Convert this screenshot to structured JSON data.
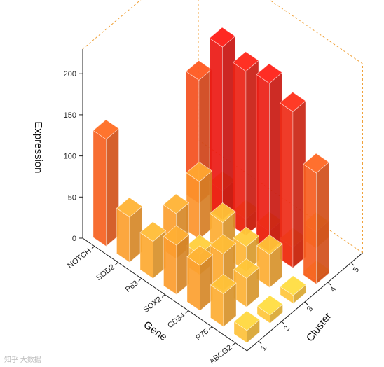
{
  "chart_data": {
    "type": "bar3d",
    "title": "",
    "x_label": "Gene",
    "y_label": "Cluster",
    "z_label": "Expression",
    "genes": [
      "NOTCH",
      "SOD2",
      "P63",
      "SOX2",
      "CD34",
      "P75",
      "ABCG2"
    ],
    "clusters": [
      "1",
      "2",
      "3",
      "4",
      "5"
    ],
    "z_ticks": [
      "0",
      "50",
      "100",
      "150",
      "200"
    ],
    "zlim": [
      0,
      230
    ],
    "values": [
      [
        130,
        0,
        0,
        0,
        0
      ],
      [
        55,
        0,
        0,
        0,
        0
      ],
      [
        45,
        55,
        70,
        35,
        0
      ],
      [
        60,
        25,
        40,
        20,
        0
      ],
      [
        55,
        45,
        30,
        25,
        0
      ],
      [
        40,
        35,
        40,
        25,
        20
      ],
      [
        15,
        10,
        10,
        5,
        0
      ]
    ],
    "back_bars": [
      {
        "gene": "NOTCH",
        "cluster": "3",
        "value": 0
      },
      {
        "gene": "SOD2",
        "cluster": "4",
        "value": 150
      },
      {
        "gene": "P63",
        "cluster": "4",
        "value": 210
      },
      {
        "gene": "SOX2",
        "cluster": "4",
        "value": 200
      },
      {
        "gene": "CD34",
        "cluster": "4",
        "value": 205
      },
      {
        "gene": "P75",
        "cluster": "4",
        "value": 190
      },
      {
        "gene": "ABCG2",
        "cluster": "4",
        "value": 135
      }
    ]
  },
  "watermark": "知乎 大数据"
}
